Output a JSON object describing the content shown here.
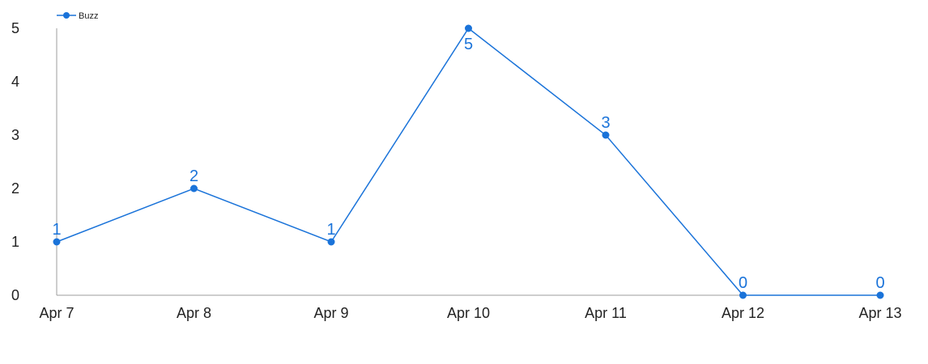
{
  "chart_data": {
    "type": "line",
    "title": "",
    "xlabel": "",
    "ylabel": "",
    "categories": [
      "Apr 7",
      "Apr 8",
      "Apr 9",
      "Apr 10",
      "Apr 11",
      "Apr 12",
      "Apr 13"
    ],
    "series": [
      {
        "name": "Buzz",
        "values": [
          1,
          2,
          1,
          5,
          3,
          0,
          0
        ],
        "color": "#1a73d9"
      }
    ],
    "ylim": [
      0,
      5
    ],
    "yticks": [
      "0",
      "1",
      "2",
      "3",
      "4",
      "5"
    ],
    "grid": false,
    "legend": "top-left",
    "data_labels": true
  }
}
